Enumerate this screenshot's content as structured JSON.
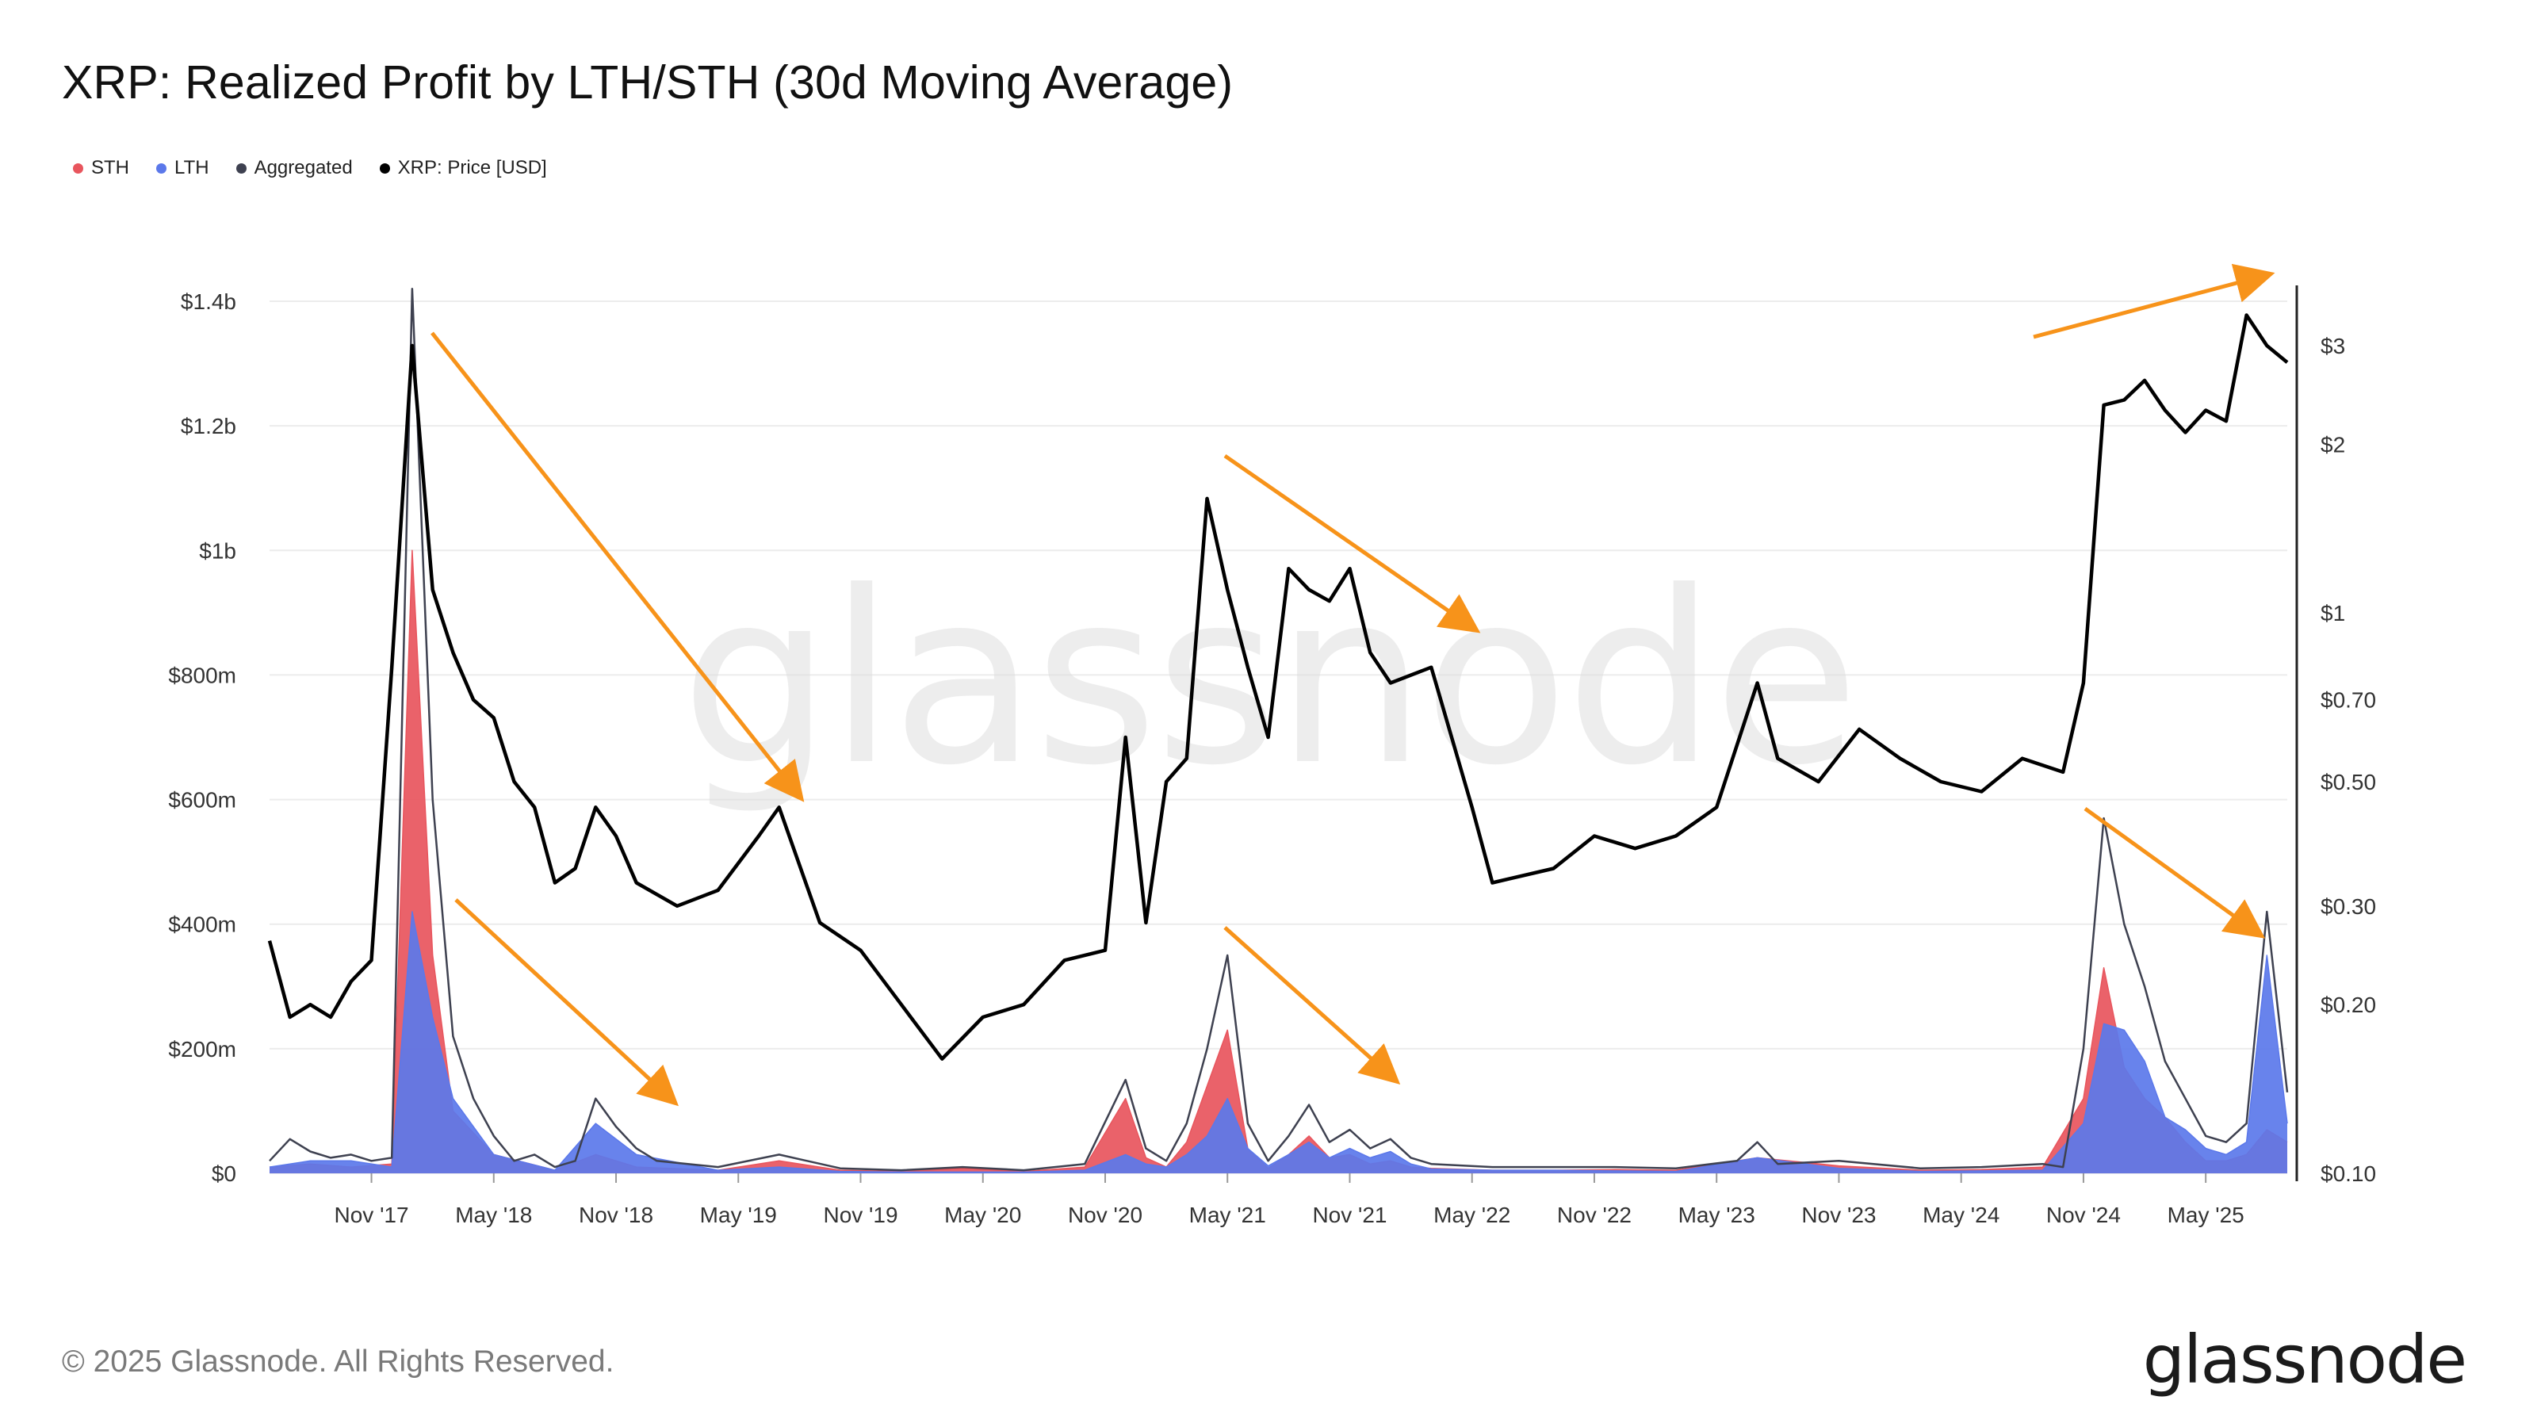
{
  "title": "XRP: Realized Profit by LTH/STH (30d Moving Average)",
  "legend": [
    {
      "label": "STH",
      "color": "#e8555d"
    },
    {
      "label": "LTH",
      "color": "#5b78ea"
    },
    {
      "label": "Aggregated",
      "color": "#3e4150"
    },
    {
      "label": "XRP: Price [USD]",
      "color": "#000000"
    }
  ],
  "footer": {
    "copyright": "© 2025 Glassnode. All Rights Reserved.",
    "brand": "glassnode"
  },
  "watermark": "glassnode",
  "chart_data": {
    "type": "area",
    "x_start": "2017-06",
    "x_end": "2025-09",
    "x_ticks": [
      "Nov '17",
      "May '18",
      "Nov '18",
      "May '19",
      "Nov '19",
      "May '20",
      "Nov '20",
      "May '21",
      "Nov '21",
      "May '22",
      "Nov '22",
      "May '23",
      "Nov '23",
      "May '24",
      "Nov '24",
      "May '25"
    ],
    "left_axis": {
      "ticks": [
        "$0",
        "$200m",
        "$400m",
        "$600m",
        "$800m",
        "$1b",
        "$1.2b",
        "$1.4b"
      ],
      "ylim": [
        0,
        1400
      ]
    },
    "right_axis": {
      "scale": "log",
      "ticks": [
        "$0.10",
        "$0.20",
        "$0.30",
        "$0.50",
        "$0.70",
        "$1",
        "$2",
        "$3"
      ],
      "ylim": [
        0.1,
        3.6
      ]
    },
    "series": [
      {
        "name": "Aggregated",
        "x": [
          "2017-06",
          "2017-07",
          "2017-08",
          "2017-09",
          "2017-10",
          "2017-11",
          "2017-12",
          "2018-01",
          "2018-02",
          "2018-03",
          "2018-04",
          "2018-05",
          "2018-06",
          "2018-07",
          "2018-08",
          "2018-09",
          "2018-10",
          "2018-11",
          "2018-12",
          "2019-01",
          "2019-04",
          "2019-07",
          "2019-10",
          "2020-01",
          "2020-04",
          "2020-07",
          "2020-10",
          "2020-12",
          "2021-01",
          "2021-02",
          "2021-03",
          "2021-04",
          "2021-05",
          "2021-06",
          "2021-07",
          "2021-08",
          "2021-09",
          "2021-10",
          "2021-11",
          "2021-12",
          "2022-01",
          "2022-02",
          "2022-03",
          "2022-06",
          "2022-09",
          "2022-12",
          "2023-03",
          "2023-06",
          "2023-07",
          "2023-08",
          "2023-11",
          "2024-03",
          "2024-06",
          "2024-09",
          "2024-10",
          "2024-11",
          "2024-12",
          "2025-01",
          "2025-02",
          "2025-03",
          "2025-04",
          "2025-05",
          "2025-06",
          "2025-07",
          "2025-08",
          "2025-09"
        ],
        "values": [
          20,
          55,
          35,
          25,
          30,
          20,
          25,
          1420,
          600,
          220,
          120,
          60,
          20,
          30,
          10,
          20,
          120,
          75,
          40,
          20,
          10,
          30,
          8,
          5,
          10,
          5,
          15,
          150,
          40,
          20,
          80,
          200,
          350,
          80,
          20,
          60,
          110,
          50,
          70,
          40,
          55,
          25,
          15,
          10,
          10,
          10,
          8,
          20,
          50,
          15,
          20,
          8,
          10,
          15,
          10,
          200,
          570,
          400,
          300,
          180,
          120,
          60,
          50,
          80,
          420,
          130
        ]
      },
      {
        "name": "STH",
        "x": [
          "2017-06",
          "2017-08",
          "2017-10",
          "2017-12",
          "2018-01",
          "2018-02",
          "2018-03",
          "2018-05",
          "2018-08",
          "2018-10",
          "2018-12",
          "2019-04",
          "2019-07",
          "2019-10",
          "2020-01",
          "2020-04",
          "2020-07",
          "2020-10",
          "2020-12",
          "2021-01",
          "2021-02",
          "2021-03",
          "2021-04",
          "2021-05",
          "2021-06",
          "2021-07",
          "2021-08",
          "2021-09",
          "2021-10",
          "2021-11",
          "2021-12",
          "2022-01",
          "2022-02",
          "2022-03",
          "2022-06",
          "2022-09",
          "2022-12",
          "2023-03",
          "2023-07",
          "2023-11",
          "2024-03",
          "2024-06",
          "2024-09",
          "2024-11",
          "2024-12",
          "2025-01",
          "2025-02",
          "2025-03",
          "2025-04",
          "2025-05",
          "2025-06",
          "2025-07",
          "2025-08",
          "2025-09"
        ],
        "values": [
          10,
          15,
          10,
          15,
          1000,
          350,
          100,
          30,
          5,
          30,
          10,
          5,
          20,
          5,
          3,
          8,
          3,
          10,
          120,
          25,
          10,
          50,
          140,
          230,
          40,
          8,
          30,
          60,
          25,
          30,
          15,
          20,
          10,
          8,
          5,
          5,
          6,
          5,
          25,
          12,
          5,
          6,
          10,
          120,
          330,
          170,
          120,
          90,
          50,
          20,
          20,
          30,
          70,
          50
        ]
      },
      {
        "name": "LTH",
        "x": [
          "2017-06",
          "2017-08",
          "2017-10",
          "2017-12",
          "2018-01",
          "2018-02",
          "2018-03",
          "2018-05",
          "2018-08",
          "2018-10",
          "2018-12",
          "2019-04",
          "2019-07",
          "2019-10",
          "2020-01",
          "2020-04",
          "2020-07",
          "2020-10",
          "2020-12",
          "2021-01",
          "2021-02",
          "2021-03",
          "2021-04",
          "2021-05",
          "2021-06",
          "2021-07",
          "2021-08",
          "2021-09",
          "2021-10",
          "2021-11",
          "2021-12",
          "2022-01",
          "2022-02",
          "2022-03",
          "2022-06",
          "2022-09",
          "2022-12",
          "2023-03",
          "2023-07",
          "2023-11",
          "2024-03",
          "2024-06",
          "2024-09",
          "2024-11",
          "2024-12",
          "2025-01",
          "2025-02",
          "2025-03",
          "2025-04",
          "2025-05",
          "2025-06",
          "2025-07",
          "2025-08",
          "2025-09"
        ],
        "values": [
          10,
          20,
          20,
          10,
          420,
          250,
          120,
          30,
          5,
          80,
          30,
          5,
          10,
          3,
          2,
          2,
          2,
          5,
          30,
          15,
          10,
          30,
          60,
          120,
          40,
          12,
          30,
          50,
          25,
          40,
          25,
          35,
          15,
          7,
          5,
          5,
          4,
          3,
          25,
          8,
          3,
          4,
          5,
          80,
          240,
          230,
          180,
          90,
          70,
          40,
          30,
          50,
          350,
          80
        ]
      },
      {
        "name": "XRP: Price [USD]",
        "x": [
          "2017-06",
          "2017-07",
          "2017-08",
          "2017-09",
          "2017-10",
          "2017-11",
          "2017-12",
          "2018-01",
          "2018-02",
          "2018-03",
          "2018-04",
          "2018-05",
          "2018-06",
          "2018-07",
          "2018-08",
          "2018-09",
          "2018-10",
          "2018-11",
          "2018-12",
          "2019-02",
          "2019-04",
          "2019-06",
          "2019-07",
          "2019-09",
          "2019-11",
          "2020-01",
          "2020-03",
          "2020-05",
          "2020-07",
          "2020-09",
          "2020-11",
          "2020-12",
          "2021-01",
          "2021-02",
          "2021-03",
          "2021-04",
          "2021-05",
          "2021-06",
          "2021-07",
          "2021-08",
          "2021-09",
          "2021-10",
          "2021-11",
          "2021-12",
          "2022-01",
          "2022-03",
          "2022-05",
          "2022-06",
          "2022-09",
          "2022-11",
          "2023-01",
          "2023-03",
          "2023-05",
          "2023-07",
          "2023-08",
          "2023-10",
          "2023-12",
          "2024-02",
          "2024-04",
          "2024-06",
          "2024-08",
          "2024-10",
          "2024-11",
          "2024-12",
          "2025-01",
          "2025-02",
          "2025-03",
          "2025-04",
          "2025-05",
          "2025-06",
          "2025-07",
          "2025-08",
          "2025-09"
        ],
        "values": [
          0.26,
          0.19,
          0.2,
          0.19,
          0.22,
          0.24,
          0.8,
          3.0,
          1.1,
          0.85,
          0.7,
          0.65,
          0.5,
          0.45,
          0.33,
          0.35,
          0.45,
          0.4,
          0.33,
          0.3,
          0.32,
          0.4,
          0.45,
          0.28,
          0.25,
          0.2,
          0.16,
          0.19,
          0.2,
          0.24,
          0.25,
          0.6,
          0.28,
          0.5,
          0.55,
          1.6,
          1.1,
          0.8,
          0.6,
          1.2,
          1.1,
          1.05,
          1.2,
          0.85,
          0.75,
          0.8,
          0.45,
          0.33,
          0.35,
          0.4,
          0.38,
          0.4,
          0.45,
          0.75,
          0.55,
          0.5,
          0.62,
          0.55,
          0.5,
          0.48,
          0.55,
          0.52,
          0.75,
          2.35,
          2.4,
          2.6,
          2.3,
          2.1,
          2.3,
          2.2,
          3.4,
          3.0,
          2.8
        ]
      }
    ],
    "grid": "horizontal",
    "legend_position": "top-left"
  }
}
